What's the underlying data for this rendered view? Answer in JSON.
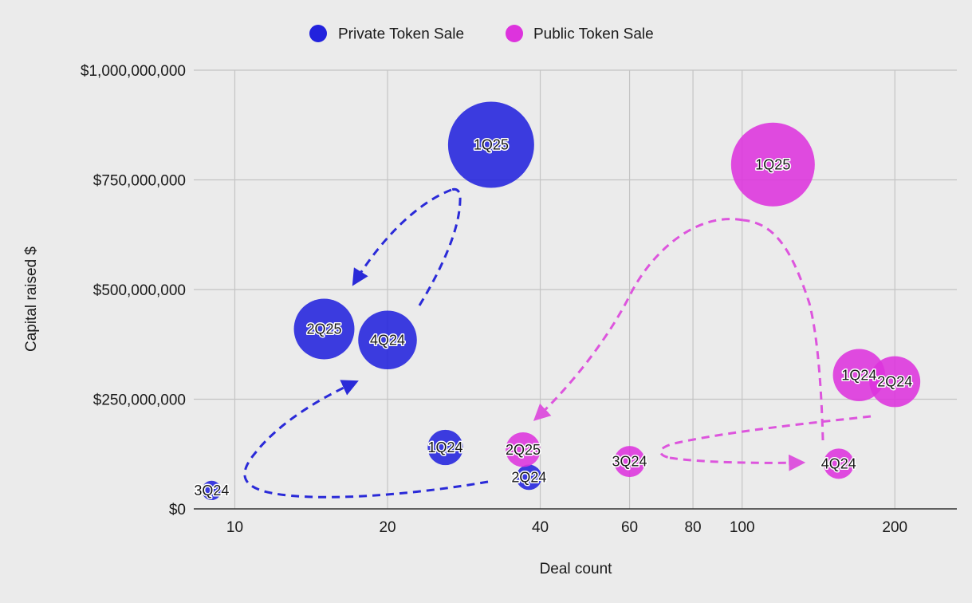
{
  "chart_data": {
    "type": "scatter",
    "xlabel": "Deal count",
    "ylabel": "Capital raised $",
    "x_scale": "log",
    "xlim": [
      8.3,
      265
    ],
    "ylim": [
      0,
      1000000000
    ],
    "x_ticks": [
      {
        "value": 10,
        "label": "10"
      },
      {
        "value": 20,
        "label": "20"
      },
      {
        "value": 40,
        "label": "40"
      },
      {
        "value": 60,
        "label": "60"
      },
      {
        "value": 80,
        "label": "80"
      },
      {
        "value": 100,
        "label": "100"
      },
      {
        "value": 200,
        "label": "200"
      }
    ],
    "y_ticks": [
      {
        "value": 0,
        "label": "$0"
      },
      {
        "value": 250000000,
        "label": "$250,000,000"
      },
      {
        "value": 500000000,
        "label": "$500,000,000"
      },
      {
        "value": 750000000,
        "label": "$750,000,000"
      },
      {
        "value": 1000000000,
        "label": "$1,000,000,000"
      }
    ],
    "grid": true,
    "legend_position": "top-center",
    "series": [
      {
        "name": "Private Token Sale",
        "color": "#2222dd",
        "points": [
          {
            "label": "3Q24",
            "x": 9,
            "y": 42000000
          },
          {
            "label": "4Q24",
            "x": 20,
            "y": 385000000
          },
          {
            "label": "1Q24",
            "x": 26,
            "y": 140000000
          },
          {
            "label": "2Q24",
            "x": 38,
            "y": 72000000
          },
          {
            "label": "1Q25",
            "x": 32,
            "y": 830000000
          },
          {
            "label": "2Q25",
            "x": 15,
            "y": 410000000
          }
        ]
      },
      {
        "name": "Public Token Sale",
        "color": "#dd33dd",
        "points": [
          {
            "label": "1Q24",
            "x": 170,
            "y": 305000000
          },
          {
            "label": "2Q24",
            "x": 200,
            "y": 290000000
          },
          {
            "label": "3Q24",
            "x": 60,
            "y": 108000000
          },
          {
            "label": "4Q24",
            "x": 155,
            "y": 103000000
          },
          {
            "label": "1Q25",
            "x": 115,
            "y": 785000000
          },
          {
            "label": "2Q25",
            "x": 37,
            "y": 135000000
          }
        ]
      }
    ]
  }
}
